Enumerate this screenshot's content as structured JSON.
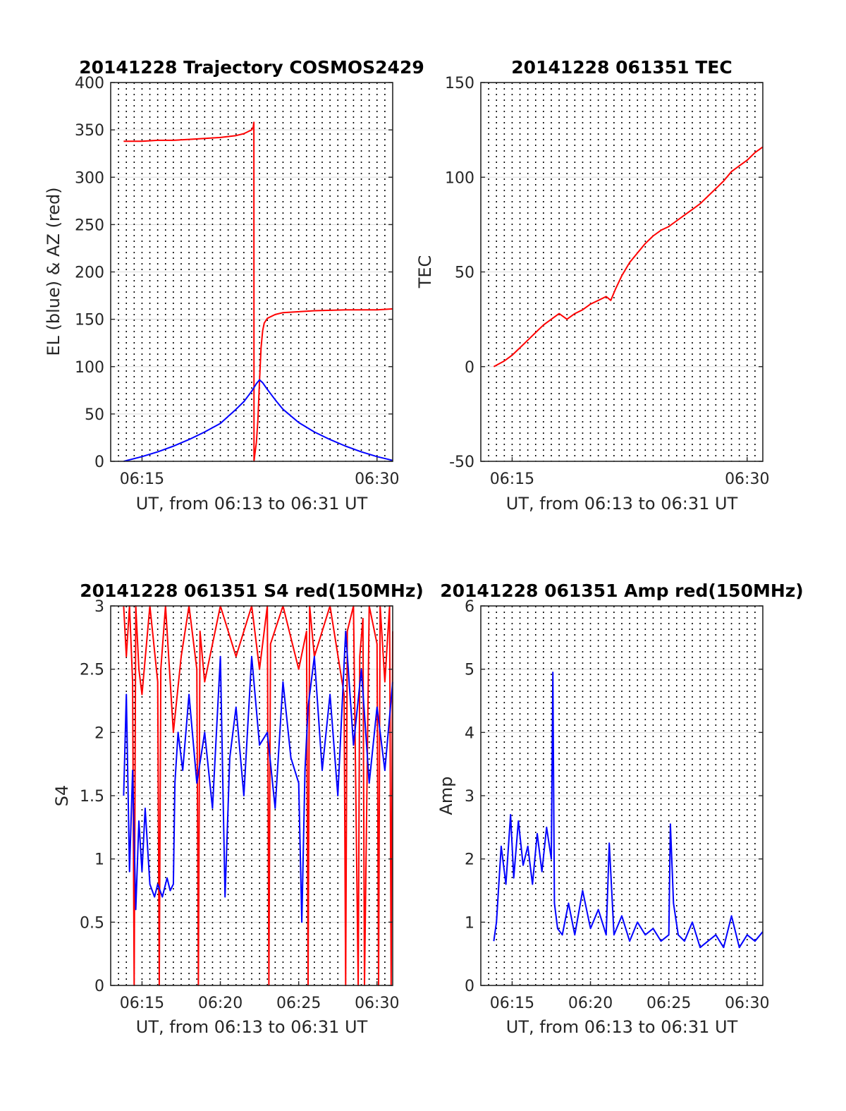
{
  "chart_data": [
    {
      "id": "trajectory",
      "type": "line",
      "title": "20141228 Trajectory COSMOS2429",
      "xlabel": "UT, from 06:13 to 06:31 UT",
      "ylabel": "EL (blue) & AZ (red)",
      "xlim": [
        13.0,
        31.0
      ],
      "ylim": [
        0,
        400
      ],
      "x_ticks": [
        {
          "value": 15,
          "label": "06:15"
        },
        {
          "value": 30,
          "label": "06:30"
        }
      ],
      "y_ticks": [
        0,
        50,
        100,
        150,
        200,
        250,
        300,
        350,
        400
      ],
      "grid": "dotted vertical every 30 s, light horizontal",
      "series": [
        {
          "color": "#ff0000",
          "x": [
            13.83,
            15.0,
            16.0,
            17.0,
            18.0,
            19.0,
            20.0,
            21.0,
            21.5,
            22.0,
            22.1,
            22.14,
            22.15,
            22.2,
            22.3,
            22.4,
            22.5,
            22.6,
            22.7,
            22.8,
            23.0,
            23.5,
            24.0,
            25.0,
            26.0,
            28.0,
            30.0,
            31.0
          ],
          "y": [
            338,
            338,
            339,
            339,
            340,
            341,
            342,
            344,
            346,
            350,
            353,
            358,
            0,
            7,
            20,
            45,
            85,
            120,
            138,
            146,
            151,
            155,
            157,
            158,
            159,
            160,
            160,
            161
          ]
        },
        {
          "color": "#0000ff",
          "x": [
            13.83,
            15.0,
            16.0,
            17.0,
            18.0,
            19.0,
            20.0,
            21.0,
            21.5,
            22.0,
            22.3,
            22.5,
            22.7,
            23.0,
            23.5,
            24.0,
            25.0,
            26.0,
            27.0,
            28.0,
            29.0,
            30.0,
            31.0
          ],
          "y": [
            0,
            5,
            10,
            16,
            23,
            31,
            40,
            55,
            63,
            74,
            82,
            86,
            83,
            76,
            65,
            55,
            41,
            31,
            23,
            16,
            10,
            5,
            1
          ]
        }
      ]
    },
    {
      "id": "tec",
      "type": "line",
      "title": "20141228 061351 TEC",
      "xlabel": "UT, from 06:13 to 06:31 UT",
      "ylabel": "TEC",
      "xlim": [
        13.0,
        31.0
      ],
      "ylim": [
        -50,
        150
      ],
      "x_ticks": [
        {
          "value": 15,
          "label": "06:15"
        },
        {
          "value": 30,
          "label": "06:30"
        }
      ],
      "y_ticks": [
        -50,
        0,
        50,
        100,
        150
      ],
      "grid": "dotted vertical every 30 s, light horizontal",
      "series": [
        {
          "color": "#ff0000",
          "x": [
            13.83,
            14.5,
            15.0,
            15.5,
            16.0,
            16.5,
            17.0,
            17.5,
            18.0,
            18.5,
            19.0,
            19.5,
            20.0,
            20.5,
            21.0,
            21.3,
            21.6,
            22.0,
            22.5,
            23.0,
            23.5,
            24.0,
            24.5,
            25.0,
            25.5,
            26.0,
            26.5,
            27.0,
            27.5,
            28.0,
            28.5,
            29.0,
            29.5,
            30.0,
            30.5,
            31.0
          ],
          "y": [
            0,
            3,
            6,
            10,
            14,
            18,
            22,
            25,
            28,
            25,
            28,
            30,
            33,
            35,
            37,
            35,
            41,
            48,
            55,
            60,
            65,
            69,
            72,
            74,
            77,
            80,
            83,
            86,
            90,
            94,
            98,
            103,
            106,
            109,
            113,
            116
          ]
        }
      ]
    },
    {
      "id": "s4",
      "type": "line",
      "title": "20141228 061351 S4 red(150MHz)",
      "xlabel": "UT, from 06:13 to 06:31 UT",
      "ylabel": "S4",
      "xlim": [
        13.0,
        31.0
      ],
      "ylim": [
        0,
        3
      ],
      "x_ticks": [
        {
          "value": 15,
          "label": "06:15"
        },
        {
          "value": 20,
          "label": "06:20"
        },
        {
          "value": 25,
          "label": "06:25"
        },
        {
          "value": 30,
          "label": "06:30"
        }
      ],
      "y_ticks": [
        0,
        0.5,
        1,
        1.5,
        2,
        2.5,
        3
      ],
      "grid": "dotted vertical every 30 s, light horizontal",
      "series": [
        {
          "color": "#ff0000",
          "note": "dense noisy trace mostly saturated at top with drops to zero",
          "x": [
            13.83,
            14.0,
            14.2,
            14.4,
            14.5,
            14.6,
            14.8,
            15.0,
            15.5,
            16.0,
            16.1,
            16.2,
            16.5,
            17.0,
            17.5,
            18.0,
            18.5,
            18.6,
            18.7,
            19.0,
            20.0,
            21.0,
            22.0,
            22.5,
            23.0,
            23.1,
            23.2,
            24.0,
            25.0,
            25.5,
            25.6,
            25.7,
            26.0,
            27.0,
            27.9,
            28.0,
            28.1,
            28.5,
            28.8,
            28.9,
            29.1,
            29.2,
            29.5,
            30.0,
            30.1,
            30.2,
            30.5,
            30.8,
            30.9,
            31.0
          ],
          "y": [
            3.0,
            2.6,
            3.0,
            2.4,
            0.0,
            3.0,
            2.5,
            2.3,
            3.0,
            2.4,
            0.0,
            2.5,
            3.0,
            2.0,
            2.6,
            3.0,
            2.5,
            0.0,
            2.8,
            2.4,
            3.0,
            2.6,
            3.0,
            2.5,
            3.0,
            0.0,
            2.7,
            3.0,
            2.5,
            2.8,
            0.0,
            3.0,
            2.6,
            3.0,
            2.3,
            0.0,
            2.8,
            3.0,
            0.0,
            2.6,
            2.9,
            0.0,
            3.0,
            2.7,
            0.0,
            3.0,
            2.4,
            3.0,
            0.0,
            2.8
          ]
        },
        {
          "color": "#0000ff",
          "note": "dense noisy trace",
          "x": [
            13.83,
            14.0,
            14.2,
            14.4,
            14.6,
            14.8,
            15.0,
            15.2,
            15.5,
            15.8,
            16.0,
            16.3,
            16.6,
            16.8,
            17.0,
            17.1,
            17.3,
            17.6,
            18.0,
            18.5,
            19.0,
            19.5,
            20.0,
            20.3,
            20.6,
            21.0,
            21.5,
            22.0,
            22.5,
            23.0,
            23.5,
            24.0,
            24.5,
            25.0,
            25.2,
            25.4,
            25.6,
            26.0,
            26.5,
            27.0,
            27.5,
            28.0,
            28.5,
            29.0,
            29.5,
            30.0,
            30.5,
            31.0
          ],
          "y": [
            1.5,
            2.3,
            0.9,
            1.7,
            0.6,
            1.3,
            0.9,
            1.4,
            0.8,
            0.7,
            0.8,
            0.7,
            0.85,
            0.75,
            0.8,
            1.6,
            2.0,
            1.7,
            2.3,
            1.6,
            2.0,
            1.4,
            2.6,
            0.7,
            1.8,
            2.2,
            1.5,
            2.6,
            1.9,
            2.0,
            1.4,
            2.4,
            1.8,
            1.6,
            0.5,
            1.7,
            2.2,
            2.6,
            1.7,
            2.3,
            1.5,
            2.8,
            1.9,
            2.5,
            1.6,
            2.2,
            1.7,
            2.4
          ]
        }
      ]
    },
    {
      "id": "amp",
      "type": "line",
      "title": "20141228 061351 Amp red(150MHz)",
      "xlabel": "UT, from 06:13 to 06:31 UT",
      "ylabel": "Amp",
      "xlim": [
        13.0,
        31.0
      ],
      "ylim": [
        0,
        6
      ],
      "x_ticks": [
        {
          "value": 15,
          "label": "06:15"
        },
        {
          "value": 20,
          "label": "06:20"
        },
        {
          "value": 25,
          "label": "06:25"
        },
        {
          "value": 30,
          "label": "06:30"
        }
      ],
      "y_ticks": [
        0,
        1,
        2,
        3,
        4,
        5,
        6
      ],
      "grid": "dotted vertical every 30 s, light horizontal",
      "series": [
        {
          "color": "#0000ff",
          "note": "dense noisy amplitude trace, envelope shown",
          "x": [
            13.83,
            14.0,
            14.3,
            14.6,
            14.9,
            15.1,
            15.4,
            15.7,
            16.0,
            16.3,
            16.6,
            16.9,
            17.2,
            17.5,
            17.6,
            17.7,
            17.9,
            18.2,
            18.6,
            19.0,
            19.5,
            20.0,
            20.5,
            21.0,
            21.2,
            21.5,
            22.0,
            22.5,
            23.0,
            23.5,
            24.0,
            24.5,
            25.0,
            25.1,
            25.3,
            25.6,
            26.0,
            26.5,
            27.0,
            27.5,
            28.0,
            28.5,
            29.0,
            29.5,
            30.0,
            30.5,
            31.0
          ],
          "y": [
            0.7,
            1.0,
            2.2,
            1.6,
            2.7,
            1.7,
            2.6,
            1.9,
            2.2,
            1.6,
            2.4,
            1.8,
            2.5,
            2.0,
            4.95,
            1.3,
            0.9,
            0.8,
            1.3,
            0.8,
            1.5,
            0.9,
            1.2,
            0.8,
            2.25,
            0.8,
            1.1,
            0.7,
            1.0,
            0.8,
            0.9,
            0.7,
            0.8,
            2.55,
            1.3,
            0.8,
            0.7,
            1.0,
            0.6,
            0.7,
            0.8,
            0.6,
            1.1,
            0.6,
            0.8,
            0.7,
            0.85
          ]
        }
      ]
    }
  ]
}
